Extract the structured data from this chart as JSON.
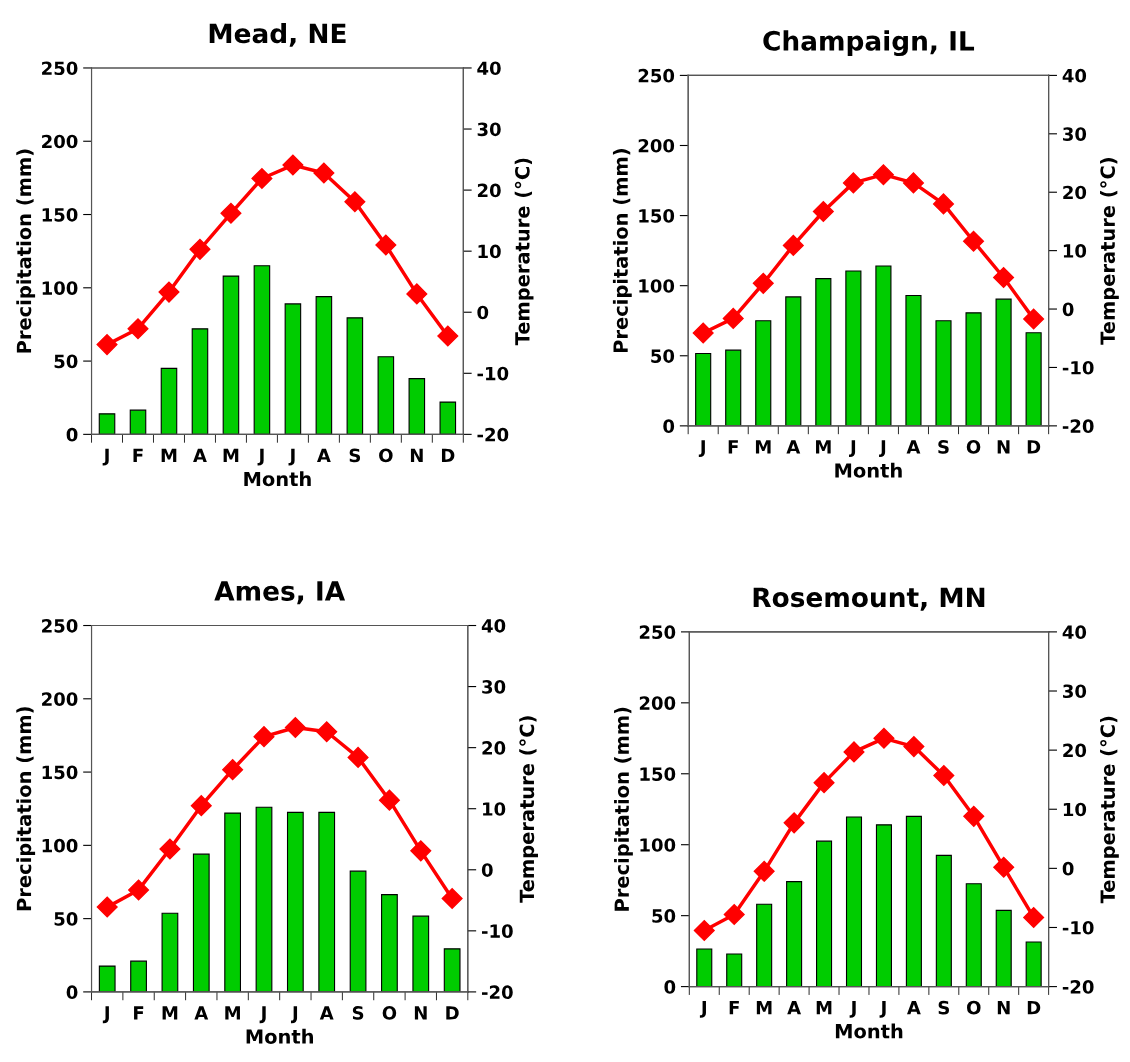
{
  "chart_data": [
    {
      "type": "bar",
      "title": "Mead, NE",
      "xlabel": "Month",
      "ylabel": "Precipitation (mm)",
      "y2label": "Temperature (°C)",
      "categories": [
        "J",
        "F",
        "M",
        "A",
        "M",
        "J",
        "J",
        "A",
        "S",
        "O",
        "N",
        "D"
      ],
      "ylim": [
        0,
        250
      ],
      "yticks": [
        0,
        50,
        100,
        150,
        200,
        250
      ],
      "y2lim": [
        -20,
        40
      ],
      "y2ticks": [
        -20,
        -10,
        0,
        10,
        20,
        30,
        40
      ],
      "series": [
        {
          "color": "#00cc00",
          "values": [
            14,
            16.5,
            45,
            72,
            108,
            115,
            89,
            94,
            79.5,
            53,
            38,
            22
          ]
        },
        {
          "type": "line",
          "axis": "y2",
          "color": "#ff0000",
          "marker": "diamond",
          "line_style": "solid",
          "values": [
            -5.3,
            -2.7,
            3.3,
            10.3,
            16.2,
            21.9,
            24.1,
            22.8,
            18.1,
            11.0,
            3.0,
            -3.9
          ]
        }
      ]
    },
    {
      "type": "bar",
      "title": "Champaign, IL",
      "xlabel": "Month",
      "ylabel": "Precipitation (mm)",
      "y2label": "Temperature (°C)",
      "categories": [
        "J",
        "F",
        "M",
        "A",
        "M",
        "J",
        "J",
        "A",
        "S",
        "O",
        "N",
        "D"
      ],
      "ylim": [
        0,
        250
      ],
      "yticks": [
        0,
        50,
        100,
        150,
        200,
        250
      ],
      "y2lim": [
        -20,
        40
      ],
      "y2ticks": [
        -20,
        -10,
        0,
        10,
        20,
        30,
        40
      ],
      "series": [
        {
          "color": "#00cc00",
          "values": [
            51.6,
            54,
            75,
            92,
            105,
            110.5,
            114,
            93,
            75,
            80.6,
            90.4,
            66.4
          ]
        },
        {
          "type": "line",
          "axis": "y2",
          "color": "#ff0000",
          "marker": "diamond",
          "line_style": "solid",
          "values": [
            -4.1,
            -1.6,
            4.4,
            10.9,
            16.7,
            21.6,
            23.0,
            21.6,
            18.0,
            11.6,
            5.4,
            -1.7
          ]
        }
      ]
    },
    {
      "type": "bar",
      "title": "Ames, IA",
      "xlabel": "Month",
      "ylabel": "Precipitation (mm)",
      "y2label": "Temperature (°C)",
      "categories": [
        "J",
        "F",
        "M",
        "A",
        "M",
        "J",
        "J",
        "A",
        "S",
        "O",
        "N",
        "D"
      ],
      "ylim": [
        0,
        250
      ],
      "yticks": [
        0,
        50,
        100,
        150,
        200,
        250
      ],
      "y2lim": [
        -20,
        40
      ],
      "y2ticks": [
        -20,
        -10,
        0,
        10,
        20,
        30,
        40
      ],
      "series": [
        {
          "color": "#00cc00",
          "values": [
            17.6,
            21,
            53.7,
            94,
            122,
            126,
            122.5,
            122.5,
            82.4,
            66.4,
            51.7,
            29.4
          ]
        },
        {
          "type": "line",
          "axis": "y2",
          "color": "#ff0000",
          "marker": "diamond",
          "line_style": "solid",
          "values": [
            -6.1,
            -3.3,
            3.4,
            10.5,
            16.4,
            21.8,
            23.3,
            22.6,
            18.4,
            11.4,
            3.1,
            -4.7
          ]
        }
      ]
    },
    {
      "type": "bar",
      "title": "Rosemount, MN",
      "xlabel": "Month",
      "ylabel": "Precipitation (mm)",
      "y2label": "Temperature (°C)",
      "categories": [
        "J",
        "F",
        "M",
        "A",
        "M",
        "J",
        "J",
        "A",
        "S",
        "O",
        "N",
        "D"
      ],
      "ylim": [
        0,
        250
      ],
      "yticks": [
        0,
        50,
        100,
        150,
        200,
        250
      ],
      "y2lim": [
        -20,
        40
      ],
      "y2ticks": [
        -20,
        -10,
        0,
        10,
        20,
        30,
        40
      ],
      "series": [
        {
          "color": "#00cc00",
          "values": [
            26.5,
            23,
            58,
            74,
            102.5,
            119.5,
            114,
            120,
            92.5,
            72.5,
            53.7,
            31.4
          ]
        },
        {
          "type": "line",
          "axis": "y2",
          "color": "#ff0000",
          "marker": "diamond",
          "line_style": "solid",
          "values": [
            -10.5,
            -7.8,
            -0.5,
            7.7,
            14.5,
            19.7,
            22.0,
            20.6,
            15.7,
            8.8,
            0.2,
            -8.3
          ]
        }
      ]
    }
  ]
}
